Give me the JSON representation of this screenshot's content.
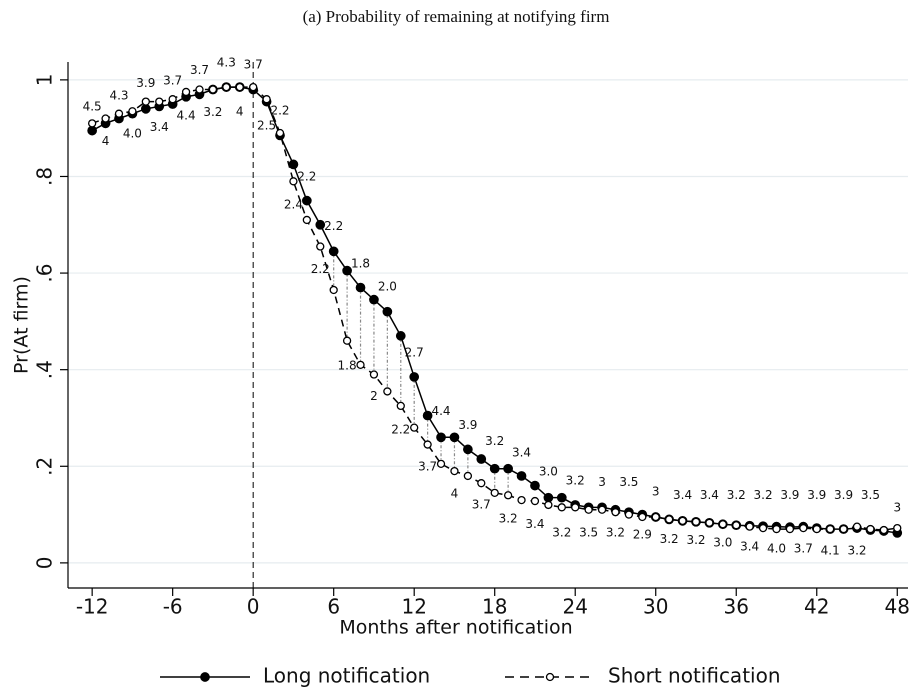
{
  "chart_data": {
    "type": "line",
    "title": "(a) Probability of remaining at notifying firm",
    "xlabel": "Months after notification",
    "ylabel": "Pr(At firm)",
    "xlim": [
      -13.8,
      48.8
    ],
    "ylim": [
      -0.052,
      1.037
    ],
    "xticks": [
      -12,
      -6,
      0,
      6,
      12,
      18,
      24,
      30,
      36,
      42,
      48
    ],
    "yticks": [
      0,
      {
        "value": 0.2,
        "label": ".2"
      },
      {
        "value": 0.4,
        "label": ".4"
      },
      {
        "value": 0.6,
        "label": ".6"
      },
      {
        "value": 0.8,
        "label": ".8"
      },
      1
    ],
    "grid": true,
    "vline": 0,
    "x": [
      -12,
      -11,
      -10,
      -9,
      -8,
      -7,
      -6,
      -5,
      -4,
      -3,
      -2,
      -1,
      0,
      1,
      2,
      3,
      4,
      5,
      6,
      7,
      8,
      9,
      10,
      11,
      12,
      13,
      14,
      15,
      16,
      17,
      18,
      19,
      20,
      21,
      22,
      23,
      24,
      25,
      26,
      27,
      28,
      29,
      30,
      31,
      32,
      33,
      34,
      35,
      36,
      37,
      38,
      39,
      40,
      41,
      42,
      43,
      44,
      45,
      46,
      47,
      48
    ],
    "series": [
      {
        "name": "Long notification",
        "color": "#000000",
        "dash": false,
        "marker": "filled",
        "values": [
          0.895,
          0.91,
          0.92,
          0.93,
          0.94,
          0.945,
          0.95,
          0.965,
          0.97,
          0.98,
          0.985,
          0.985,
          0.98,
          0.955,
          0.885,
          0.825,
          0.75,
          0.7,
          0.645,
          0.605,
          0.57,
          0.545,
          0.52,
          0.47,
          0.385,
          0.305,
          0.26,
          0.26,
          0.235,
          0.215,
          0.195,
          0.195,
          0.18,
          0.16,
          0.135,
          0.135,
          0.12,
          0.115,
          0.115,
          0.11,
          0.105,
          0.1,
          0.095,
          0.09,
          0.087,
          0.085,
          0.083,
          0.08,
          0.078,
          0.077,
          0.076,
          0.075,
          0.074,
          0.075,
          0.072,
          0.07,
          0.07,
          0.072,
          0.068,
          0.066,
          0.062
        ]
      },
      {
        "name": "Short notification",
        "color": "#000000",
        "dash": true,
        "marker": "open",
        "values": [
          0.91,
          0.92,
          0.93,
          0.935,
          0.955,
          0.955,
          0.96,
          0.975,
          0.98,
          0.98,
          0.985,
          0.985,
          0.985,
          0.96,
          0.89,
          0.79,
          0.71,
          0.655,
          0.565,
          0.46,
          0.41,
          0.39,
          0.355,
          0.325,
          0.28,
          0.245,
          0.205,
          0.19,
          0.18,
          0.165,
          0.145,
          0.14,
          0.13,
          0.128,
          0.12,
          0.115,
          0.115,
          0.11,
          0.11,
          0.105,
          0.1,
          0.095,
          0.095,
          0.09,
          0.087,
          0.085,
          0.083,
          0.08,
          0.078,
          0.075,
          0.072,
          0.07,
          0.07,
          0.072,
          0.07,
          0.07,
          0.07,
          0.075,
          0.07,
          0.068,
          0.072
        ]
      }
    ],
    "annotations": [
      {
        "x": -12,
        "y": 0.944,
        "text": "4.5"
      },
      {
        "x": -10,
        "y": 0.967,
        "text": "4.3"
      },
      {
        "x": -8,
        "y": 0.992,
        "text": "3.9"
      },
      {
        "x": -6,
        "y": 0.998,
        "text": "3.7"
      },
      {
        "x": -4,
        "y": 1.019,
        "text": "3.7"
      },
      {
        "x": -2,
        "y": 1.035,
        "text": "4.3"
      },
      {
        "x": 0,
        "y": 1.031,
        "text": "3.7"
      },
      {
        "x": -11,
        "y": 0.872,
        "text": "4"
      },
      {
        "x": -9,
        "y": 0.888,
        "text": "4.0"
      },
      {
        "x": -7,
        "y": 0.901,
        "text": "3.4"
      },
      {
        "x": -5,
        "y": 0.925,
        "text": "4.4"
      },
      {
        "x": -3,
        "y": 0.932,
        "text": "3.2"
      },
      {
        "x": -1,
        "y": 0.934,
        "text": "4"
      },
      {
        "x": 1,
        "y": 0.905,
        "text": "2.5"
      },
      {
        "x": 2,
        "y": 0.936,
        "text": "2.2"
      },
      {
        "x": 4,
        "y": 0.799,
        "text": "2.2"
      },
      {
        "x": 3,
        "y": 0.741,
        "text": "2.4"
      },
      {
        "x": 6,
        "y": 0.696,
        "text": "2.2"
      },
      {
        "x": 5,
        "y": 0.607,
        "text": "2.2"
      },
      {
        "x": 8,
        "y": 0.619,
        "text": "1.8"
      },
      {
        "x": 10,
        "y": 0.571,
        "text": "2.0"
      },
      {
        "x": 7,
        "y": 0.408,
        "text": "1.8"
      },
      {
        "x": 12,
        "y": 0.435,
        "text": "2.7"
      },
      {
        "x": 9,
        "y": 0.344,
        "text": "2"
      },
      {
        "x": 14,
        "y": 0.313,
        "text": "4.4"
      },
      {
        "x": 11,
        "y": 0.275,
        "text": "2.2"
      },
      {
        "x": 16,
        "y": 0.284,
        "text": "3.9"
      },
      {
        "x": 13,
        "y": 0.199,
        "text": "3.7"
      },
      {
        "x": 18,
        "y": 0.251,
        "text": "3.2"
      },
      {
        "x": 15,
        "y": 0.143,
        "text": "4"
      },
      {
        "x": 20,
        "y": 0.228,
        "text": "3.4"
      },
      {
        "x": 17,
        "y": 0.12,
        "text": "3.7"
      },
      {
        "x": 22,
        "y": 0.188,
        "text": "3.0"
      },
      {
        "x": 19,
        "y": 0.091,
        "text": "3.2"
      },
      {
        "x": 24,
        "y": 0.17,
        "text": "3.2"
      },
      {
        "x": 21,
        "y": 0.079,
        "text": "3.4"
      },
      {
        "x": 26,
        "y": 0.166,
        "text": "3"
      },
      {
        "x": 23,
        "y": 0.062,
        "text": "3.2"
      },
      {
        "x": 28,
        "y": 0.166,
        "text": "3.5"
      },
      {
        "x": 25,
        "y": 0.062,
        "text": "3.5"
      },
      {
        "x": 30,
        "y": 0.147,
        "text": "3"
      },
      {
        "x": 27,
        "y": 0.062,
        "text": "3.2"
      },
      {
        "x": 32,
        "y": 0.139,
        "text": "3.4"
      },
      {
        "x": 29,
        "y": 0.058,
        "text": "2.9"
      },
      {
        "x": 34,
        "y": 0.139,
        "text": "3.4"
      },
      {
        "x": 31,
        "y": 0.048,
        "text": "3.2"
      },
      {
        "x": 36,
        "y": 0.139,
        "text": "3.2"
      },
      {
        "x": 33,
        "y": 0.046,
        "text": "3.2"
      },
      {
        "x": 38,
        "y": 0.139,
        "text": "3.2"
      },
      {
        "x": 35,
        "y": 0.041,
        "text": "3.0"
      },
      {
        "x": 40,
        "y": 0.139,
        "text": "3.9"
      },
      {
        "x": 37,
        "y": 0.033,
        "text": "3.4"
      },
      {
        "x": 42,
        "y": 0.139,
        "text": "3.9"
      },
      {
        "x": 39,
        "y": 0.029,
        "text": "4.0"
      },
      {
        "x": 44,
        "y": 0.139,
        "text": "3.9"
      },
      {
        "x": 41,
        "y": 0.029,
        "text": "3.7"
      },
      {
        "x": 46,
        "y": 0.139,
        "text": "3.5"
      },
      {
        "x": 43,
        "y": 0.025,
        "text": "4.1"
      },
      {
        "x": 48,
        "y": 0.114,
        "text": "3"
      },
      {
        "x": 45,
        "y": 0.025,
        "text": "3.2"
      }
    ]
  }
}
